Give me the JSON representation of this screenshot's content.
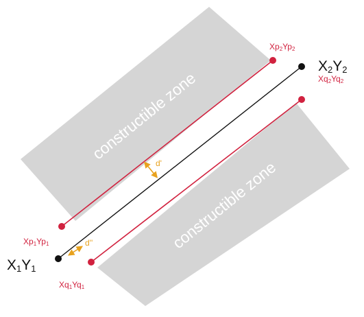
{
  "zones": {
    "upper_label": "constructible zone",
    "lower_label": "constructible zone"
  },
  "axis_points": {
    "start": {
      "base": "X",
      "sub1": "1",
      "mid": "Y",
      "sub2": "1"
    },
    "end": {
      "base": "X",
      "sub1": "2",
      "mid": "Y",
      "sub2": "2"
    }
  },
  "offset_points": {
    "p1": {
      "a": "Xp",
      "s1": "1",
      "b": "Yp",
      "s2": "1"
    },
    "p2": {
      "a": "Xp",
      "s1": "2",
      "b": "Yp",
      "s2": "2"
    },
    "q1": {
      "a": "Xq",
      "s1": "1",
      "b": "Yq",
      "s2": "1"
    },
    "q2": {
      "a": "Xq",
      "s1": "2",
      "b": "Yq",
      "s2": "2"
    }
  },
  "distances": {
    "d_prime": "d'",
    "d_double_prime": "d''"
  },
  "colors": {
    "zone": "#d5d5d5",
    "axis_line": "#111111",
    "offset_line": "#d1223f",
    "arrow": "#e8a21e",
    "zone_text": "#ffffff"
  }
}
